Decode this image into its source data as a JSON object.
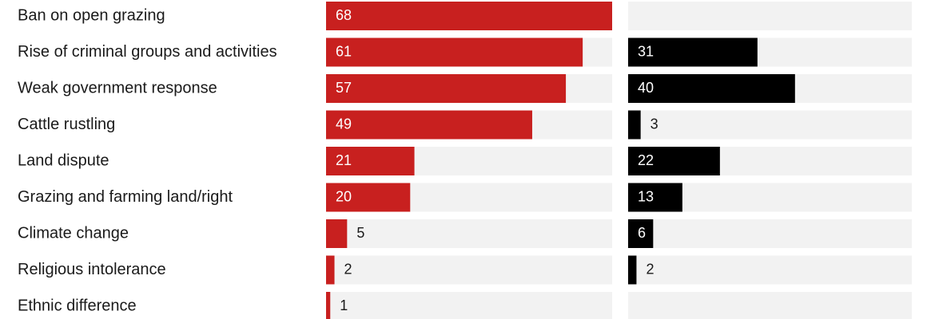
{
  "chart_data": [
    {
      "type": "bar",
      "orientation": "horizontal",
      "categories": [
        "Ban on open grazing",
        "Rise of criminal groups and activities",
        "Weak government response",
        "Cattle rustling",
        "Land dispute",
        "Grazing and farming land/right",
        "Climate change",
        "Religious intolerance",
        "Ethnic difference"
      ],
      "series": [
        {
          "values": [
            68,
            61,
            57,
            49,
            21,
            20,
            5,
            2,
            1
          ],
          "color": "#c8201f"
        }
      ],
      "xlim": [
        0,
        68
      ],
      "grid": false,
      "track_color": "#f2f2f2"
    },
    {
      "type": "bar",
      "orientation": "horizontal",
      "categories": [
        "Ban on open grazing",
        "Rise of criminal groups and activities",
        "Weak government response",
        "Cattle rustling",
        "Land dispute",
        "Grazing and farming land/right",
        "Climate change",
        "Religious intolerance",
        "Ethnic difference"
      ],
      "series": [
        {
          "values": [
            null,
            31,
            40,
            3,
            22,
            13,
            6,
            2,
            null
          ],
          "color": "#000000"
        }
      ],
      "xlim": [
        0,
        68
      ],
      "grid": false,
      "track_color": "#f2f2f2"
    }
  ]
}
